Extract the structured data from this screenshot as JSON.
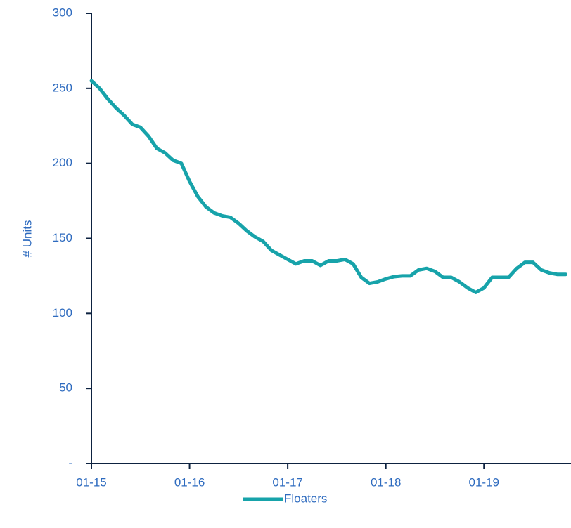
{
  "chart_data": {
    "type": "line",
    "y_label": "# Units",
    "categories": [
      "01-15",
      null,
      null,
      null,
      null,
      null,
      null,
      null,
      null,
      null,
      null,
      null,
      "01-16",
      null,
      null,
      null,
      null,
      null,
      null,
      null,
      null,
      null,
      null,
      null,
      "01-17",
      null,
      null,
      null,
      null,
      null,
      null,
      null,
      null,
      null,
      null,
      null,
      "01-18",
      null,
      null,
      null,
      null,
      null,
      null,
      null,
      null,
      null,
      null,
      null,
      "01-19",
      null,
      null,
      null,
      null,
      null,
      null,
      null,
      null,
      null,
      null
    ],
    "series": [
      {
        "name": "Floaters",
        "color": "#17a3aa",
        "values": [
          255,
          250,
          243,
          237,
          232,
          226,
          224,
          218,
          210,
          207,
          202,
          200,
          188,
          178,
          171,
          167,
          165,
          164,
          160,
          155,
          151,
          148,
          142,
          139,
          136,
          133,
          135,
          135,
          132,
          135,
          135,
          136,
          133,
          124,
          120,
          121,
          123,
          124.5,
          125,
          125,
          129,
          130,
          128,
          124,
          124,
          121,
          117,
          114,
          117,
          124,
          124,
          124,
          130,
          134,
          134,
          129,
          127,
          126,
          126
        ]
      }
    ],
    "ylim": [
      0,
      300
    ],
    "yticks": [
      {
        "value": 0,
        "label": "-"
      },
      50,
      100,
      150,
      200,
      250,
      300
    ],
    "legend": "bottom"
  }
}
